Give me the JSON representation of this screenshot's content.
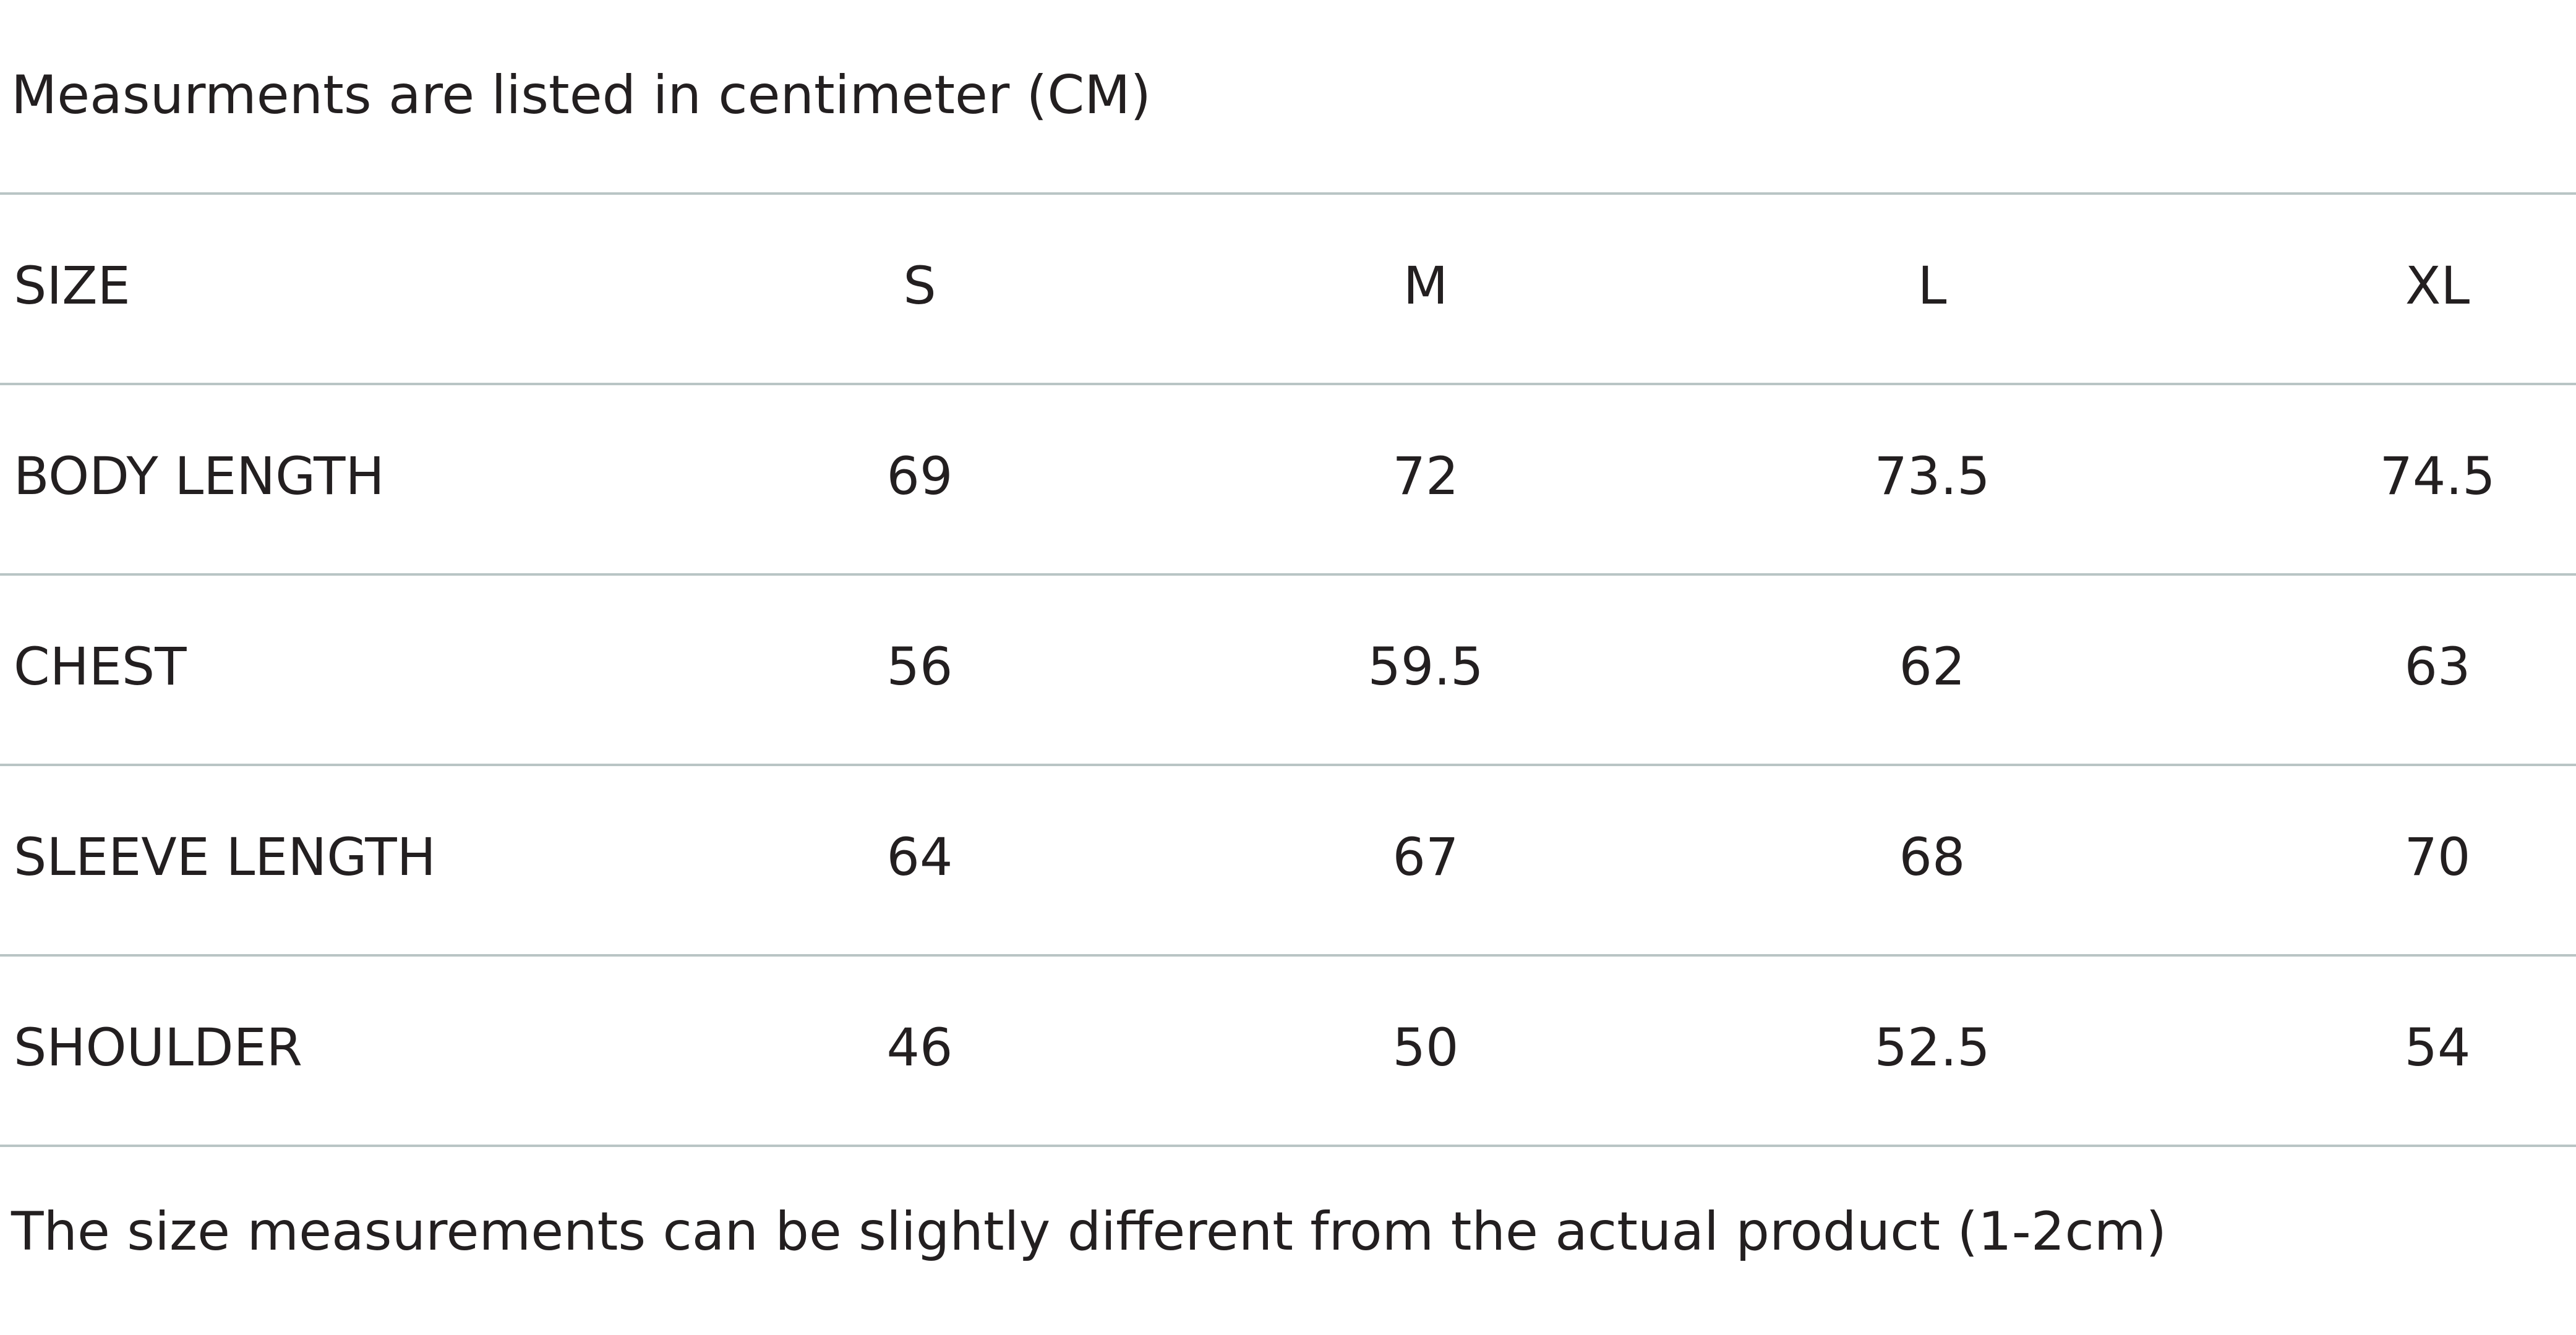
{
  "note_top": "Measurments are listed in centimeter (CM)",
  "table": {
    "header": [
      "SIZE",
      "S",
      "M",
      "L",
      "XL"
    ],
    "rows": [
      [
        "BODY LENGTH",
        69,
        72,
        73.5,
        74.5
      ],
      [
        "CHEST",
        56,
        59.5,
        62,
        63
      ],
      [
        "SLEEVE LENGTH",
        64,
        67,
        68,
        70
      ],
      [
        "SHOULDER",
        46,
        50,
        52.5,
        54
      ]
    ]
  },
  "note_bottom": "The size measurements can be slightly different from the actual product (1-2cm)"
}
